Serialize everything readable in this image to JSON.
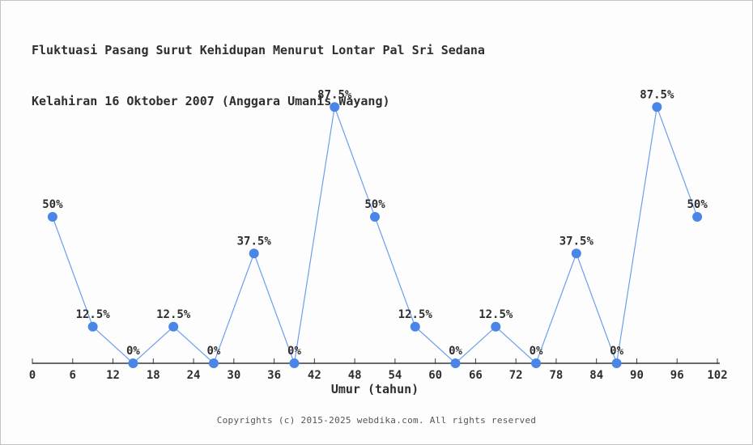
{
  "title": {
    "line1": "Fluktuasi Pasang Surut Kehidupan Menurut Lontar Pal Sri Sedana",
    "line2": "Kelahiran 16 Oktober 2007 (Anggara Umanis Wayang)"
  },
  "footer": {
    "text": "Copyrights (c) 2015-2025 webdika.com. All rights reserved"
  },
  "chart_data": {
    "type": "line",
    "title": "Fluktuasi Pasang Surut Kehidupan Menurut Lontar Pal Sri Sedana Kelahiran 16 Oktober 2007 (Anggara Umanis Wayang)",
    "xlabel": "Umur (tahun)",
    "ylabel": "",
    "xlim": [
      0,
      102
    ],
    "ylim": [
      0,
      100
    ],
    "grid": false,
    "xticks": [
      0,
      6,
      12,
      18,
      24,
      30,
      36,
      42,
      48,
      54,
      60,
      66,
      72,
      78,
      84,
      90,
      96,
      102
    ],
    "points": [
      {
        "x": 3,
        "y": 50,
        "label": "50%"
      },
      {
        "x": 9,
        "y": 12.5,
        "label": "12.5%"
      },
      {
        "x": 15,
        "y": 0,
        "label": "0%"
      },
      {
        "x": 21,
        "y": 12.5,
        "label": "12.5%"
      },
      {
        "x": 27,
        "y": 0,
        "label": "0%"
      },
      {
        "x": 33,
        "y": 37.5,
        "label": "37.5%"
      },
      {
        "x": 39,
        "y": 0,
        "label": "0%"
      },
      {
        "x": 45,
        "y": 87.5,
        "label": "87.5%"
      },
      {
        "x": 51,
        "y": 50,
        "label": "50%"
      },
      {
        "x": 57,
        "y": 12.5,
        "label": "12.5%"
      },
      {
        "x": 63,
        "y": 0,
        "label": "0%"
      },
      {
        "x": 69,
        "y": 12.5,
        "label": "12.5%"
      },
      {
        "x": 75,
        "y": 0,
        "label": "0%"
      },
      {
        "x": 81,
        "y": 37.5,
        "label": "37.5%"
      },
      {
        "x": 87,
        "y": 0,
        "label": "0%"
      },
      {
        "x": 93,
        "y": 87.5,
        "label": "87.5%"
      },
      {
        "x": 99,
        "y": 50,
        "label": "50%"
      }
    ],
    "colors": {
      "marker": "#4a86e8",
      "line": "#6d9eeb",
      "axis": "#3a3a3a",
      "text": "#2e2e2e",
      "footer_text": "#555555",
      "background": "#fdfdfd",
      "border": "#c4c4c4"
    }
  }
}
